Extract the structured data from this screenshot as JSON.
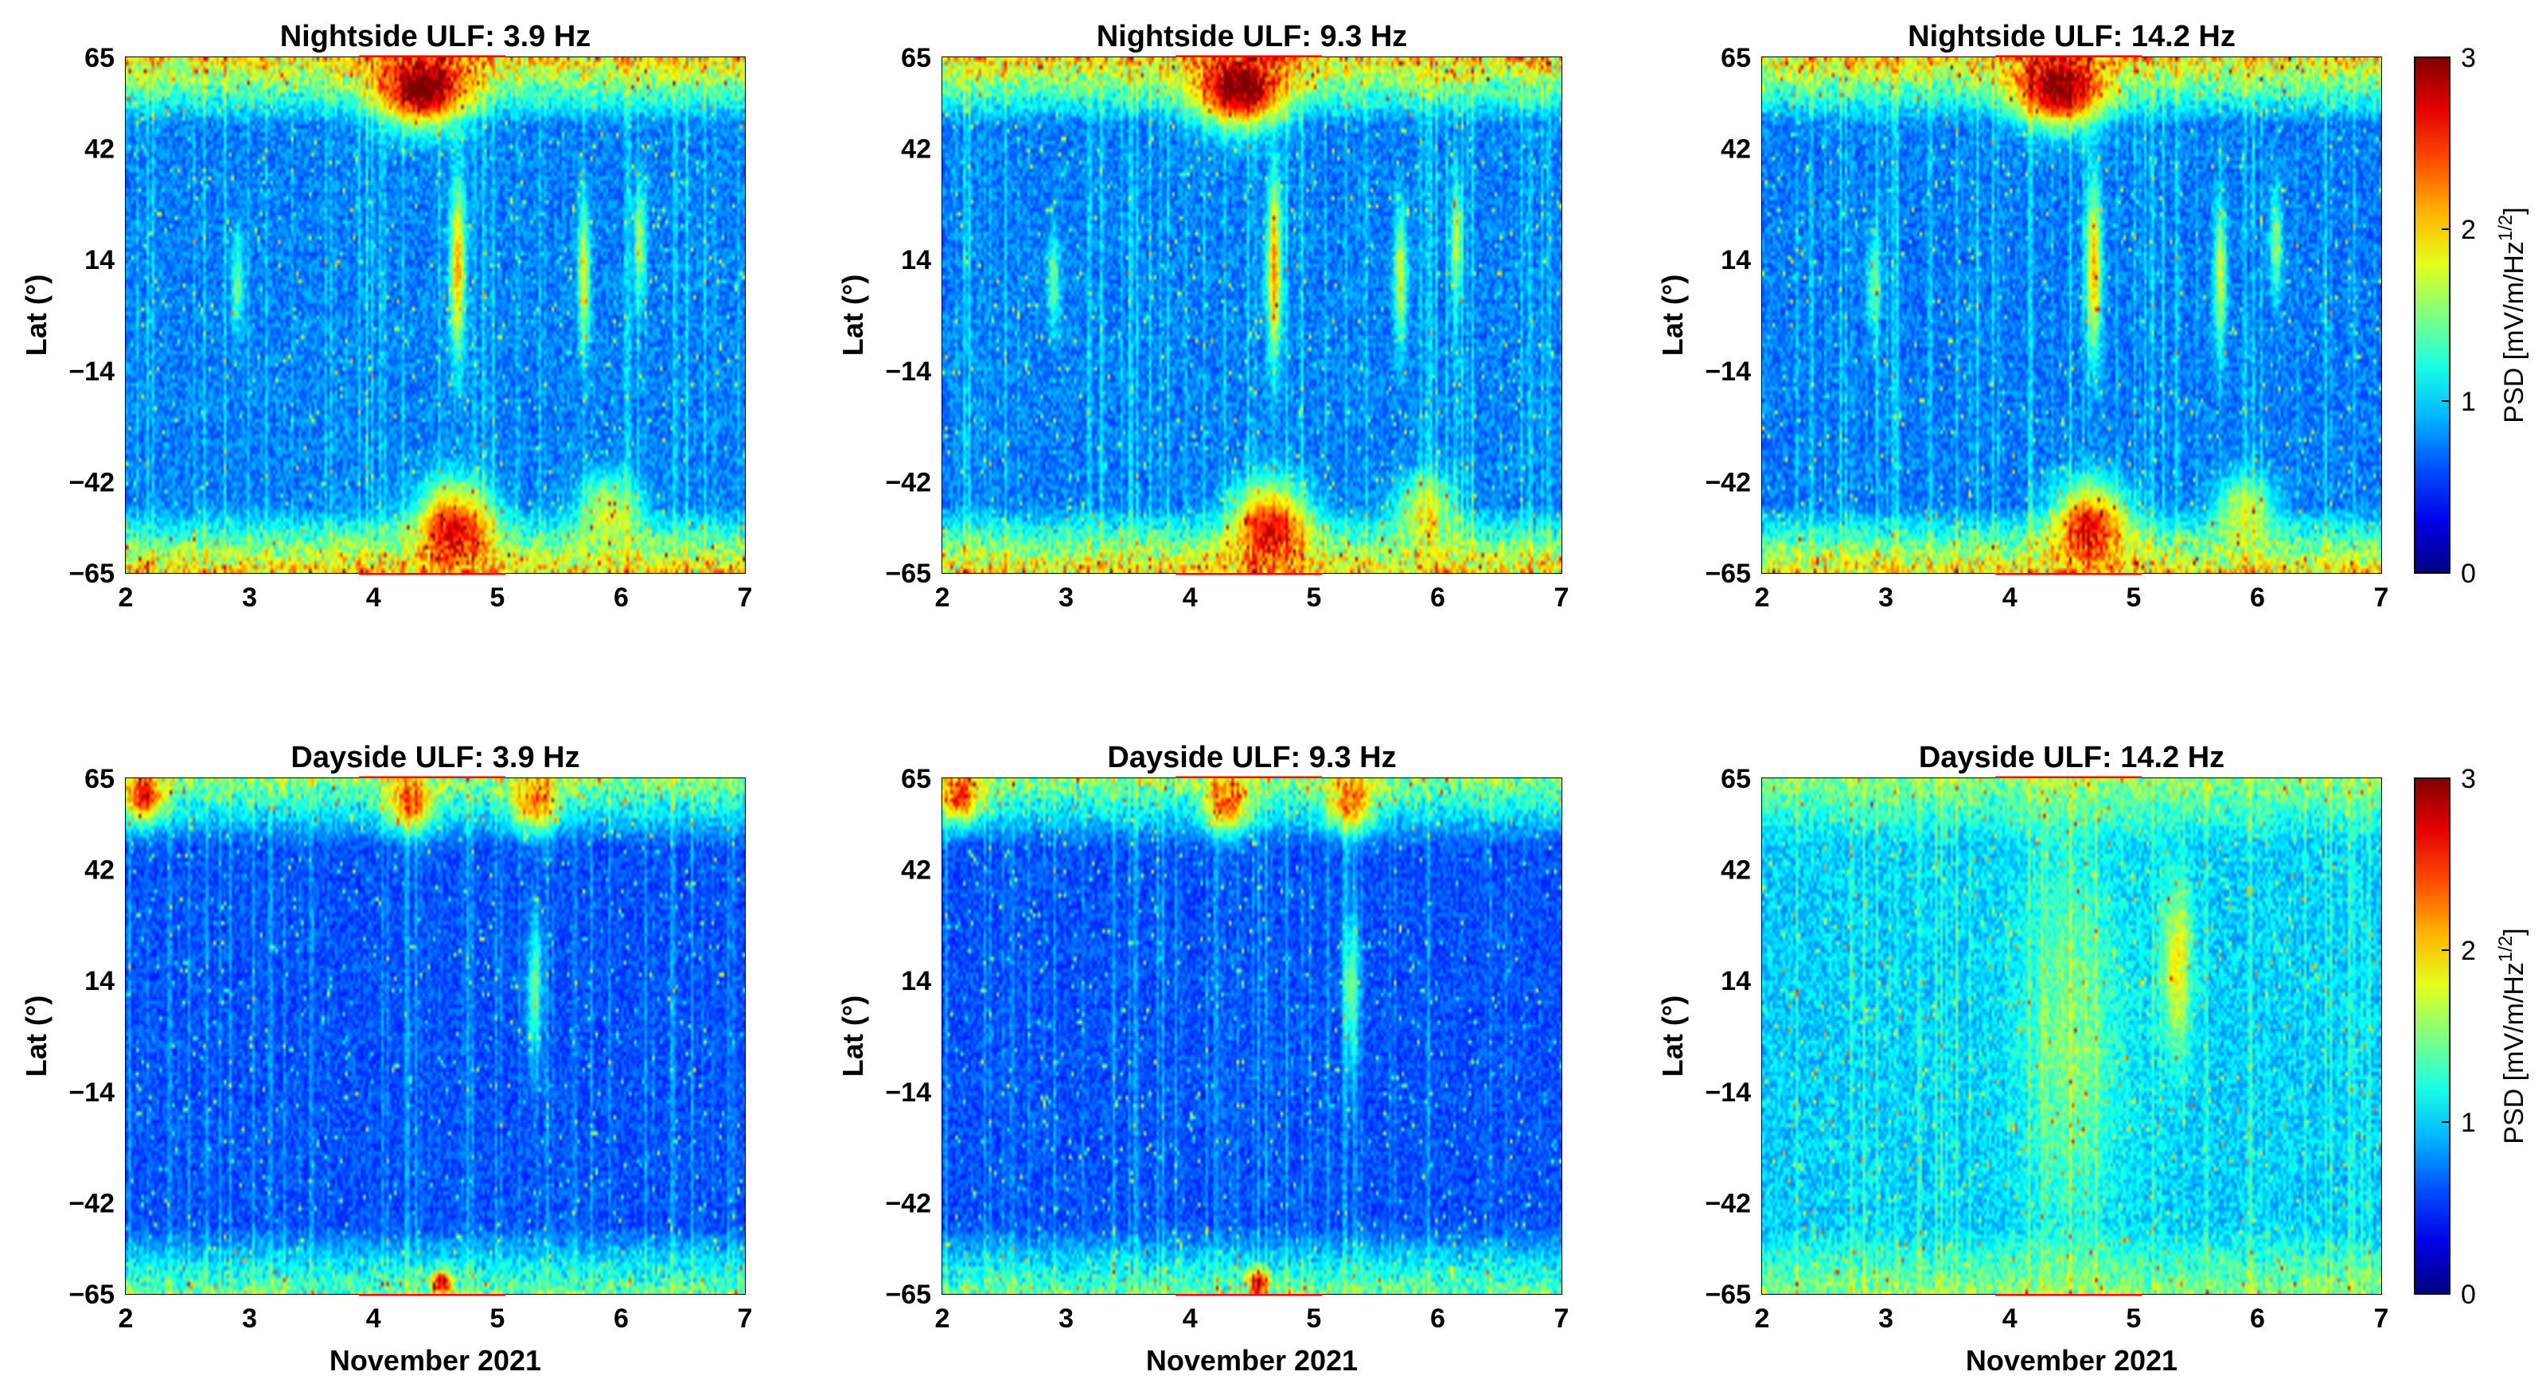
{
  "chart_data": [
    {
      "type": "heatmap",
      "panel": "nightside-3.9",
      "title": "Nightside ULF: 3.9 Hz",
      "ylabel": "Lat (°)",
      "xlabel": "",
      "x_ticks": [
        "2",
        "3",
        "4",
        "5",
        "6",
        "7"
      ],
      "y_ticks": [
        "65",
        "42",
        "14",
        "−14",
        "−42",
        "−65"
      ],
      "xlim": [
        2,
        7
      ],
      "ylim": [
        -65,
        65
      ],
      "colorbar": true,
      "colorbar_label": "PSD [mV/m/Hz",
      "colorbar_exp": "1/2",
      "colorbar_close": "]",
      "colorbar_ticks": [
        "3",
        "2",
        "1",
        "0"
      ],
      "clim": [
        0,
        3
      ],
      "highlight": [
        3.9,
        5.05
      ],
      "intensity": 1.0,
      "blobs": "night"
    },
    {
      "type": "heatmap",
      "panel": "nightside-9.3",
      "title": "Nightside ULF: 9.3 Hz",
      "ylabel": "Lat (°)",
      "xlabel": "",
      "x_ticks": [
        "2",
        "3",
        "4",
        "5",
        "6",
        "7"
      ],
      "y_ticks": [
        "65",
        "42",
        "14",
        "−14",
        "−42",
        "−65"
      ],
      "xlim": [
        2,
        7
      ],
      "ylim": [
        -65,
        65
      ],
      "colorbar": false,
      "clim": [
        0,
        3
      ],
      "highlight": [
        3.9,
        5.05
      ],
      "intensity": 0.95,
      "blobs": "night"
    },
    {
      "type": "heatmap",
      "panel": "nightside-14.2",
      "title": "Nightside ULF: 14.2 Hz",
      "ylabel": "Lat (°)",
      "xlabel": "",
      "x_ticks": [
        "2",
        "3",
        "4",
        "5",
        "6",
        "7"
      ],
      "y_ticks": [
        "65",
        "42",
        "14",
        "−14",
        "−42",
        "−65"
      ],
      "xlim": [
        2,
        7
      ],
      "ylim": [
        -65,
        65
      ],
      "colorbar": false,
      "clim": [
        0,
        3
      ],
      "highlight": [
        3.9,
        5.05
      ],
      "intensity": 0.85,
      "blobs": "night"
    },
    {
      "type": "heatmap",
      "panel": "dayside-3.9",
      "title": "Dayside ULF: 3.9 Hz",
      "ylabel": "Lat (°)",
      "xlabel": "November 2021",
      "x_ticks": [
        "2",
        "3",
        "4",
        "5",
        "6",
        "7"
      ],
      "y_ticks": [
        "65",
        "42",
        "14",
        "−14",
        "−42",
        "−65"
      ],
      "xlim": [
        2,
        7
      ],
      "ylim": [
        -65,
        65
      ],
      "colorbar": true,
      "colorbar_label": "PSD [mV/m/Hz",
      "colorbar_exp": "1/2",
      "colorbar_close": "]",
      "colorbar_ticks": [
        "3",
        "2",
        "1",
        "0"
      ],
      "clim": [
        0,
        3
      ],
      "highlight": [
        3.9,
        5.05
      ],
      "intensity": 0.8,
      "blobs": "day"
    },
    {
      "type": "heatmap",
      "panel": "dayside-9.3",
      "title": "Dayside ULF: 9.3 Hz",
      "ylabel": "Lat (°)",
      "xlabel": "November 2021",
      "x_ticks": [
        "2",
        "3",
        "4",
        "5",
        "6",
        "7"
      ],
      "y_ticks": [
        "65",
        "42",
        "14",
        "−14",
        "−42",
        "−65"
      ],
      "xlim": [
        2,
        7
      ],
      "ylim": [
        -65,
        65
      ],
      "colorbar": false,
      "clim": [
        0,
        3
      ],
      "highlight": [
        3.9,
        5.05
      ],
      "intensity": 0.8,
      "blobs": "day"
    },
    {
      "type": "heatmap",
      "panel": "dayside-14.2",
      "title": "Dayside ULF: 14.2 Hz",
      "ylabel": "Lat (°)",
      "xlabel": "November 2021",
      "x_ticks": [
        "2",
        "3",
        "4",
        "5",
        "6",
        "7"
      ],
      "y_ticks": [
        "65",
        "42",
        "14",
        "−14",
        "−42",
        "−65"
      ],
      "xlim": [
        2,
        7
      ],
      "ylim": [
        -65,
        65
      ],
      "colorbar": false,
      "clim": [
        0,
        3
      ],
      "highlight": [
        3.9,
        5.05
      ],
      "intensity": 1.0,
      "blobs": "day14"
    }
  ],
  "colors": {
    "highlight_box": "#ff0000",
    "colormap": "jet"
  }
}
